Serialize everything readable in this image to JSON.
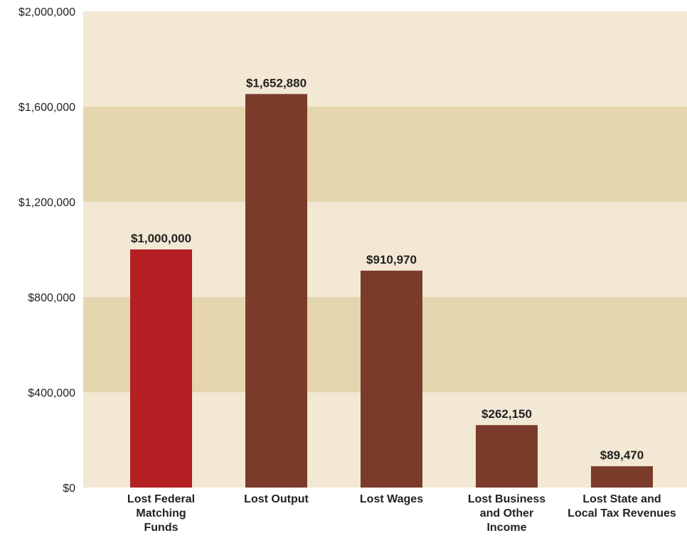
{
  "chart_data": {
    "type": "bar",
    "title": "",
    "xlabel": "",
    "ylabel": "",
    "ylim": [
      0,
      2000000
    ],
    "y_ticks": [
      0,
      400000,
      800000,
      1200000,
      1600000,
      2000000
    ],
    "y_tick_labels": [
      "$0",
      "$400,000",
      "$800,000",
      "$1,200,000",
      "$1,600,000",
      "$2,000,000"
    ],
    "categories": [
      "Lost Federal Matching Funds",
      "Lost Output",
      "Lost Wages",
      "Lost Business and Other Income",
      "Lost State and Local Tax Revenues"
    ],
    "category_label_lines": [
      [
        "Lost Federal",
        "Matching",
        "Funds"
      ],
      [
        "Lost Output"
      ],
      [
        "Lost Wages"
      ],
      [
        "Lost Business",
        "and Other",
        "Income"
      ],
      [
        "Lost State and",
        "Local Tax Revenues"
      ]
    ],
    "values": [
      1000000,
      1652880,
      910970,
      262150,
      89470
    ],
    "value_labels": [
      "$1,000,000",
      "$1,652,880",
      "$910,970",
      "$262,150",
      "$89,470"
    ],
    "grid": "alternating horizontal bands",
    "legend": "none"
  },
  "colors": {
    "band_light": "#F2E8D3",
    "band_dark": "#E4D5AE",
    "bar_highlight": "#B31F23",
    "bar_default": "#7B3B2B"
  }
}
